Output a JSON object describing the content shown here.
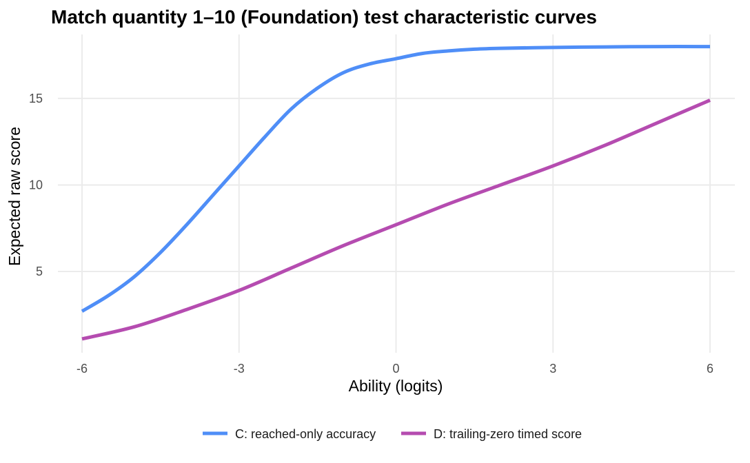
{
  "chart_data": {
    "type": "line",
    "title": "Match quantity 1–10 (Foundation) test characteristic curves",
    "xlabel": "Ability (logits)",
    "ylabel": "Expected raw score",
    "xlim": [
      -6,
      6
    ],
    "ylim": [
      0.3,
      18.7
    ],
    "x_ticks": [
      -6,
      -3,
      0,
      3,
      6
    ],
    "x_tick_labels": [
      "-6",
      "-3",
      "0",
      "3",
      "6"
    ],
    "y_ticks": [
      5,
      10,
      15
    ],
    "y_tick_labels": [
      "5",
      "10",
      "15"
    ],
    "grid": true,
    "legend_position": "bottom",
    "series": [
      {
        "name": "C: reached-only accuracy",
        "color": "#4f8ef7",
        "x": [
          -6,
          -5.5,
          -5,
          -4.5,
          -4,
          -3.5,
          -3,
          -2.5,
          -2,
          -1.5,
          -1,
          -0.5,
          0,
          0.5,
          1,
          1.5,
          2,
          3,
          4,
          5,
          6
        ],
        "y": [
          2.7,
          3.6,
          4.7,
          6.1,
          7.7,
          9.4,
          11.1,
          12.8,
          14.4,
          15.6,
          16.5,
          17.0,
          17.3,
          17.6,
          17.75,
          17.85,
          17.9,
          17.95,
          17.98,
          18.0,
          18.0
        ]
      },
      {
        "name": "D: trailing-zero timed score",
        "color": "#b54cb0",
        "x": [
          -6,
          -5,
          -4,
          -3,
          -2,
          -1,
          0,
          1,
          2,
          3,
          4,
          5,
          6
        ],
        "y": [
          1.1,
          1.8,
          2.8,
          3.9,
          5.2,
          6.5,
          7.7,
          8.9,
          10.0,
          11.1,
          12.3,
          13.6,
          14.9
        ]
      }
    ]
  }
}
